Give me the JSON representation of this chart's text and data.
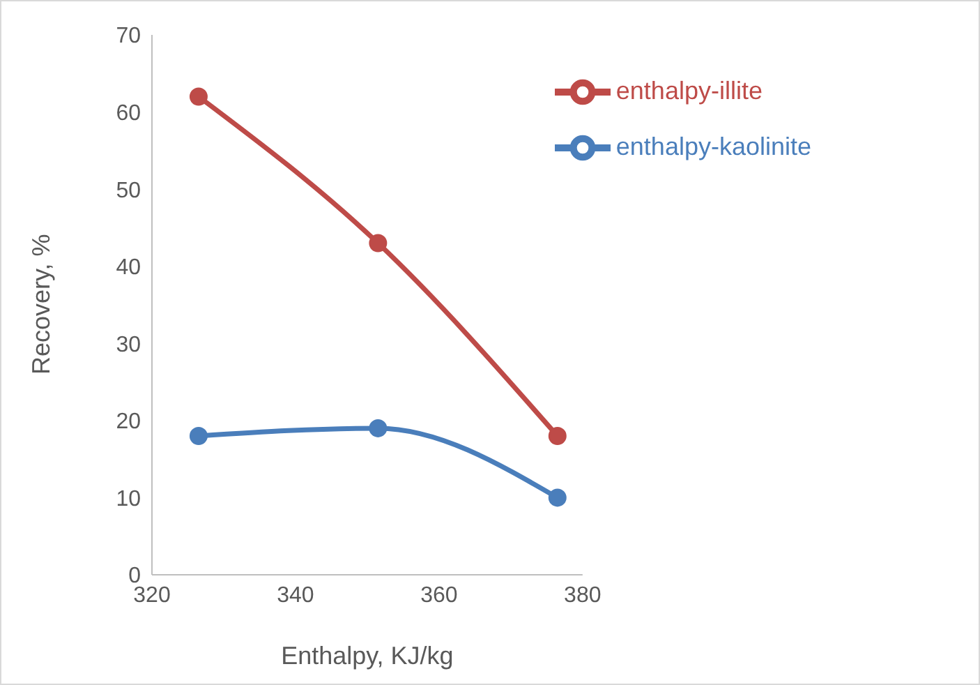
{
  "chart_data": {
    "type": "line",
    "xlabel": "Enthalpy, KJ/kg",
    "ylabel": "Recovery, %",
    "x": [
      326.5,
      351.5,
      376.5
    ],
    "series": [
      {
        "name": "enthalpy-kaolinite",
        "color": "#4a7ebb",
        "values": [
          18,
          19,
          10
        ]
      },
      {
        "name": "enthalpy-illite",
        "color": "#be4b48",
        "values": [
          62,
          43,
          18
        ]
      }
    ],
    "xlim": [
      320,
      380
    ],
    "xticks": [
      320,
      340,
      360,
      380
    ],
    "ylim": [
      0,
      70
    ],
    "yticks": [
      0,
      10,
      20,
      30,
      40,
      50,
      60,
      70
    ],
    "grid": false,
    "legend": "top right",
    "marker": "circle",
    "line_style": "solid"
  }
}
